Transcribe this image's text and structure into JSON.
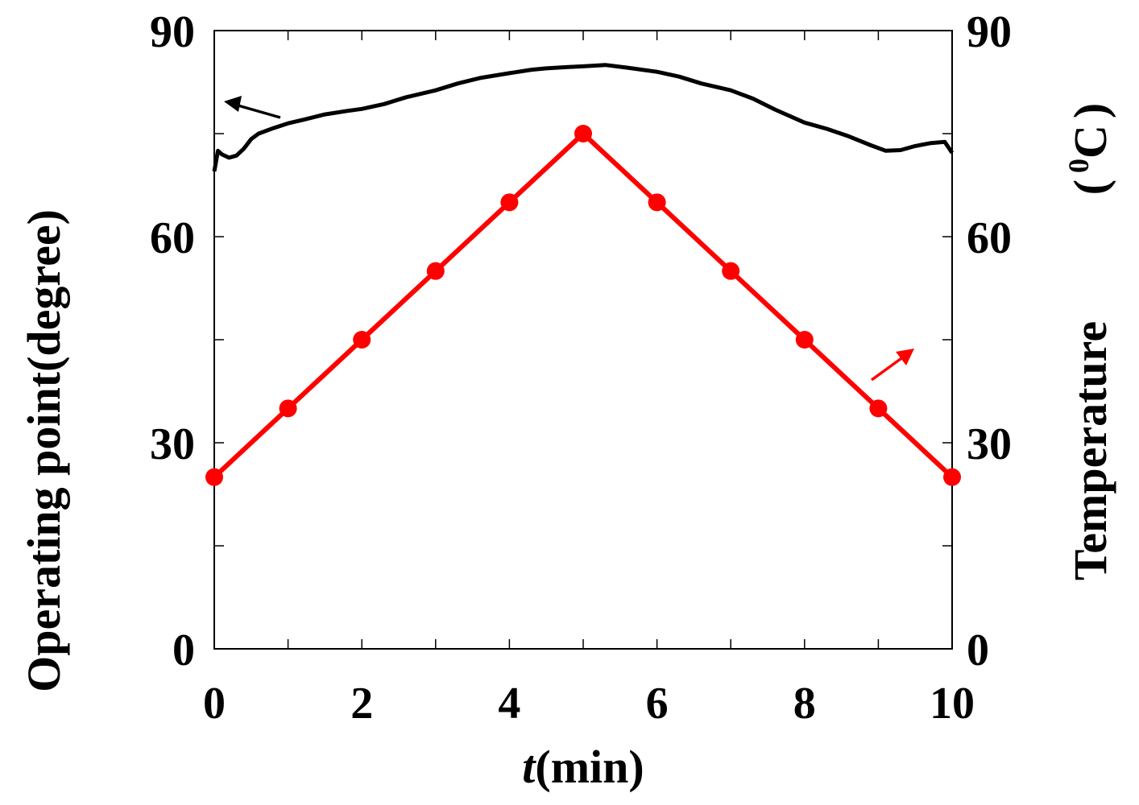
{
  "chart_data": {
    "type": "line",
    "xlabel_italic": "t",
    "xlabel_rest": "(min)",
    "ylabel_left": "Operating point(degree)",
    "ylabel_right": "Temperature",
    "ylabel_right_unit_sup": "0",
    "ylabel_right_unit": "C",
    "unit_paren_open": "(",
    "unit_paren_close": ")",
    "xlim": [
      0,
      10
    ],
    "ylim_left": [
      0,
      90
    ],
    "ylim_right": [
      0,
      90
    ],
    "x_ticks": [
      "0",
      "2",
      "4",
      "6",
      "8",
      "10"
    ],
    "y_ticks_left": [
      "0",
      "30",
      "60",
      "90"
    ],
    "y_ticks_right": [
      "0",
      "30",
      "60",
      "90"
    ],
    "grid": false,
    "series": [
      {
        "axis": "left",
        "color": "#000000",
        "style": "line",
        "x": [
          0.0,
          0.05,
          0.1,
          0.2,
          0.3,
          0.4,
          0.5,
          0.6,
          0.8,
          1.0,
          1.2,
          1.5,
          1.8,
          2.0,
          2.3,
          2.6,
          3.0,
          3.3,
          3.6,
          4.0,
          4.3,
          4.5,
          4.8,
          5.0,
          5.3,
          5.6,
          6.0,
          6.3,
          6.6,
          7.0,
          7.3,
          7.6,
          8.0,
          8.3,
          8.6,
          8.9,
          9.1,
          9.3,
          9.5,
          9.7,
          9.9,
          10.0
        ],
        "y": [
          69.5,
          72.5,
          72.0,
          71.5,
          71.8,
          72.8,
          74.2,
          75.0,
          75.8,
          76.5,
          77.0,
          77.8,
          78.3,
          78.6,
          79.3,
          80.3,
          81.3,
          82.3,
          83.1,
          83.8,
          84.3,
          84.5,
          84.7,
          84.8,
          85.0,
          84.6,
          84.0,
          83.3,
          82.3,
          81.3,
          80.1,
          78.5,
          76.6,
          75.7,
          74.6,
          73.3,
          72.5,
          72.6,
          73.2,
          73.6,
          73.8,
          72.2
        ]
      },
      {
        "axis": "right",
        "color": "#ff0000",
        "style": "line-markers",
        "x": [
          0,
          1,
          2,
          3,
          4,
          5,
          6,
          7,
          8,
          9,
          10
        ],
        "y": [
          25,
          35,
          45,
          55,
          65,
          75,
          65,
          55,
          45,
          35,
          25
        ]
      }
    ],
    "annotations": [
      {
        "type": "arrow",
        "direction": "left",
        "color": "#000000",
        "points_to": "left axis"
      },
      {
        "type": "arrow",
        "direction": "right",
        "color": "#ff0000",
        "points_to": "right axis"
      }
    ]
  }
}
